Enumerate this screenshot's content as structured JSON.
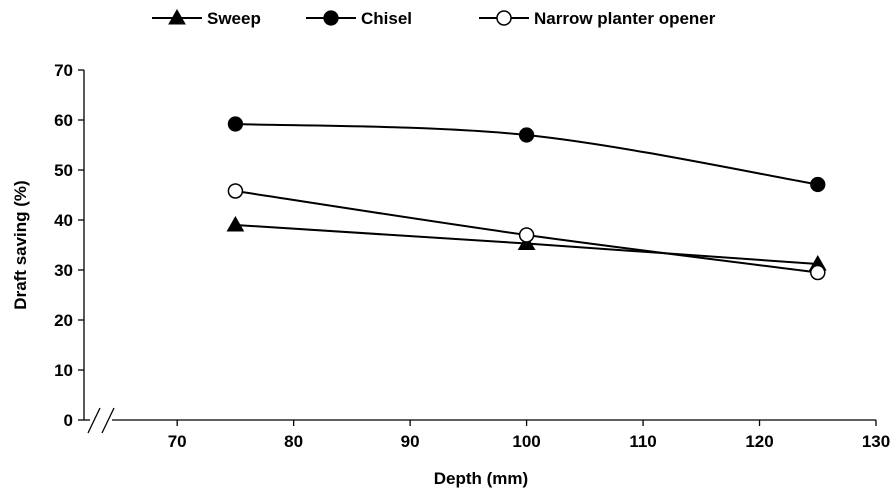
{
  "chart_data": {
    "type": "line",
    "xlabel": "Depth (mm)",
    "ylabel": "Draft saving  (%)",
    "xlim": [
      62,
      130
    ],
    "ylim": [
      0,
      70
    ],
    "xticks": [
      70,
      80,
      90,
      100,
      110,
      120,
      130
    ],
    "yticks": [
      0,
      10,
      20,
      30,
      40,
      50,
      60,
      70
    ],
    "xtick_labels": [
      "70",
      "80",
      "90",
      "100",
      "110",
      "120",
      "130"
    ],
    "ytick_labels": [
      "0",
      "10",
      "20",
      "30",
      "40",
      "50",
      "60",
      "70"
    ],
    "axis_break": "x",
    "grid": false,
    "legend": "top",
    "x": [
      75,
      100,
      125
    ],
    "series": [
      {
        "name": "Sweep",
        "marker": "triangle",
        "values": [
          39,
          35.3,
          31.2
        ],
        "smooth": false
      },
      {
        "name": "Chisel",
        "marker": "circle-filled",
        "values": [
          59.2,
          57,
          47.1
        ],
        "smooth": true
      },
      {
        "name": "Narrow planter opener",
        "marker": "circle-open",
        "values": [
          45.8,
          37,
          29.5
        ],
        "smooth": true
      }
    ],
    "colors": {
      "line": "#000000",
      "open_fill": "#ffffff"
    }
  }
}
